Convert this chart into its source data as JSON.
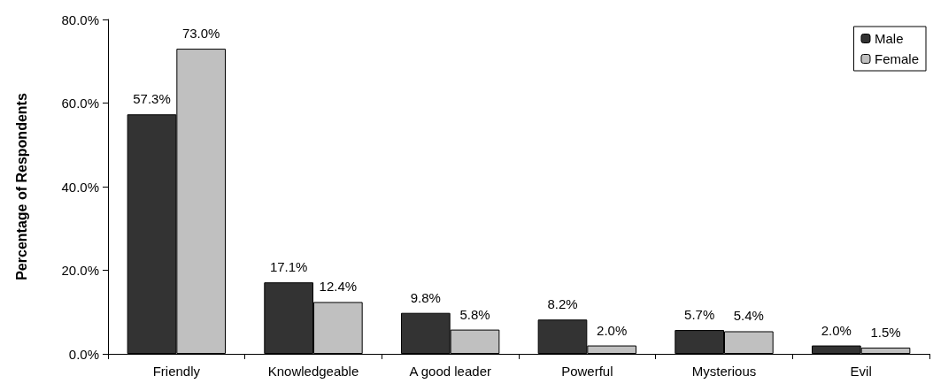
{
  "chart_data": {
    "type": "bar",
    "ylabel": "Percentage of Respondents",
    "categories": [
      "Friendly",
      "Knowledgeable",
      "A good leader",
      "Powerful",
      "Mysterious",
      "Evil"
    ],
    "series": [
      {
        "name": "Male",
        "color": "#333333",
        "values": [
          57.3,
          17.1,
          9.8,
          8.2,
          5.7,
          2.0
        ],
        "value_labels": [
          "57.3%",
          "17.1%",
          "9.8%",
          "8.2%",
          "5.7%",
          "2.0%"
        ]
      },
      {
        "name": "Female",
        "color": "#c0c0c0",
        "values": [
          73.0,
          12.4,
          5.8,
          2.0,
          5.4,
          1.5
        ],
        "value_labels": [
          "73.0%",
          "12.4%",
          "5.8%",
          "2.0%",
          "5.4%",
          "1.5%"
        ]
      }
    ],
    "ylim": [
      0,
      80
    ],
    "yticks": [
      {
        "value": 0,
        "label": "0.0%"
      },
      {
        "value": 20,
        "label": "20.0%"
      },
      {
        "value": 40,
        "label": "40.0%"
      },
      {
        "value": 60,
        "label": "60.0%"
      },
      {
        "value": 80,
        "label": "80.0%"
      }
    ],
    "grid": false,
    "legend": "top right"
  }
}
